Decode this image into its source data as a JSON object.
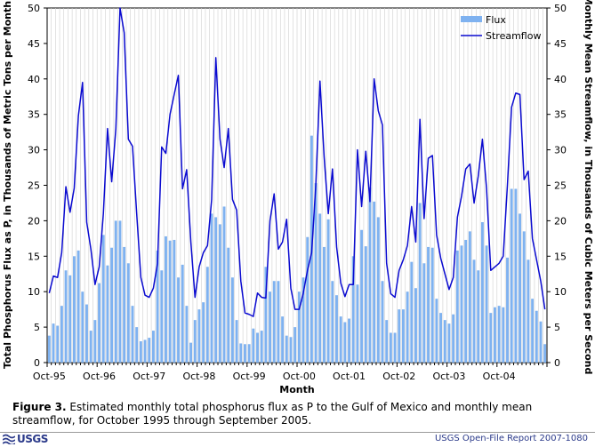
{
  "caption": {
    "label": "Figure 3.",
    "text": " Estimated monthly total phosphorus flux as P to the Gulf of Mexico and monthly mean streamflow, for October 1995 through September 2005."
  },
  "footer": {
    "logo_text": "USGS",
    "report": "USGS Open-File Report 2007-1080"
  },
  "colors": {
    "flux": "#7fb2f0",
    "streamflow": "#0a0ad0",
    "frame": "#000000"
  },
  "chart_data": {
    "type": "bar",
    "title": "",
    "xlabel": "Month",
    "ylabel": "Total Phosphorus Flux as P, in Thousands of Metric Tons per Month",
    "y2label": "Monthly Mean Streamflow, in Thousands of Cubic Meters per Second",
    "ylim": [
      0,
      50
    ],
    "y2lim": [
      0,
      50
    ],
    "yticks": [
      0,
      5,
      10,
      15,
      20,
      25,
      30,
      35,
      40,
      45,
      50
    ],
    "y2ticks": [
      0,
      5,
      10,
      15,
      20,
      25,
      30,
      35,
      40,
      45,
      50
    ],
    "xtick_labels": [
      "Oct-95",
      "Oct-96",
      "Oct-97",
      "Oct-98",
      "Oct-99",
      "Oct-00",
      "Oct-01",
      "Oct-02",
      "Oct-03",
      "Oct-04"
    ],
    "legend": [
      "Flux",
      "Streamflow"
    ],
    "legend_position": "top-right",
    "grid": "x-minor vertical lines",
    "series": [
      {
        "name": "Flux",
        "type": "bar",
        "axis": "left",
        "values": [
          3.8,
          5.5,
          5.2,
          8,
          13,
          12.3,
          15,
          15.8,
          10,
          8.2,
          4.5,
          6,
          11.2,
          18,
          13.7,
          16.2,
          20,
          20,
          16.3,
          14,
          8,
          5,
          3,
          3.2,
          3.5,
          4.5,
          15.8,
          13,
          17.8,
          17.2,
          17.3,
          12,
          13.8,
          8,
          2.8,
          6,
          7.5,
          8.5,
          13.5,
          21,
          20.5,
          19.5,
          22,
          16.2,
          12,
          6,
          2.7,
          2.6,
          2.6,
          4.8,
          4.2,
          4.5,
          13.5,
          10,
          11.5,
          11.5,
          6.5,
          3.8,
          3.6,
          5,
          10,
          12,
          17.7,
          32,
          25.3,
          21,
          16.3,
          20.2,
          11.5,
          9.5,
          6.5,
          5.7,
          6.2,
          15,
          11,
          18.7,
          16.4,
          24.7,
          22.7,
          20.5,
          11.5,
          6,
          4.2,
          4.2,
          7.5,
          7.5,
          10,
          14.2,
          10.5,
          22.5,
          14,
          16.3,
          16.2,
          9,
          7,
          6,
          5.5,
          6.8,
          15.8,
          16.5,
          17.3,
          18.5,
          14.5,
          13,
          19.8,
          16.5,
          7,
          7.8,
          8,
          7.8,
          14.8,
          24.5,
          24.5,
          21,
          18.5,
          14.5,
          9,
          7.3,
          5.8,
          2.6
        ]
      },
      {
        "name": "Streamflow",
        "type": "line",
        "axis": "right",
        "values": [
          9.8,
          12.2,
          12,
          15.5,
          24.8,
          21.2,
          24.6,
          34.8,
          39.5,
          19.8,
          16,
          11,
          13.5,
          21,
          33,
          25.5,
          33,
          50,
          46.5,
          31.5,
          30.5,
          21,
          12,
          9.5,
          9.2,
          10.5,
          14,
          30.4,
          29.5,
          35,
          37.8,
          40.5,
          24.5,
          27.2,
          17,
          9.2,
          13.5,
          15.5,
          16.5,
          23,
          43,
          31.5,
          27.5,
          33,
          23,
          21.5,
          11.5,
          7,
          6.8,
          6.5,
          9.8,
          9.2,
          9.1,
          20,
          23.8,
          16,
          17,
          20.2,
          10.5,
          7.5,
          7.5,
          9.8,
          13,
          15.5,
          25,
          39.7,
          29,
          21,
          27.3,
          16.3,
          11.2,
          9.3,
          11,
          11,
          30,
          22,
          29.8,
          22.7,
          40,
          35.5,
          33.5,
          14,
          9.7,
          9.2,
          13,
          14.5,
          16.5,
          22,
          17,
          34.3,
          20.3,
          28.8,
          29.2,
          18,
          14.7,
          12.5,
          10.3,
          12,
          20.5,
          23.5,
          27.3,
          28,
          22.5,
          26.3,
          31.5,
          24.5,
          13,
          13.5,
          14,
          15,
          25,
          36,
          38,
          37.8,
          25.8,
          27,
          17.5,
          14.5,
          11.5,
          7.5
        ]
      }
    ]
  }
}
